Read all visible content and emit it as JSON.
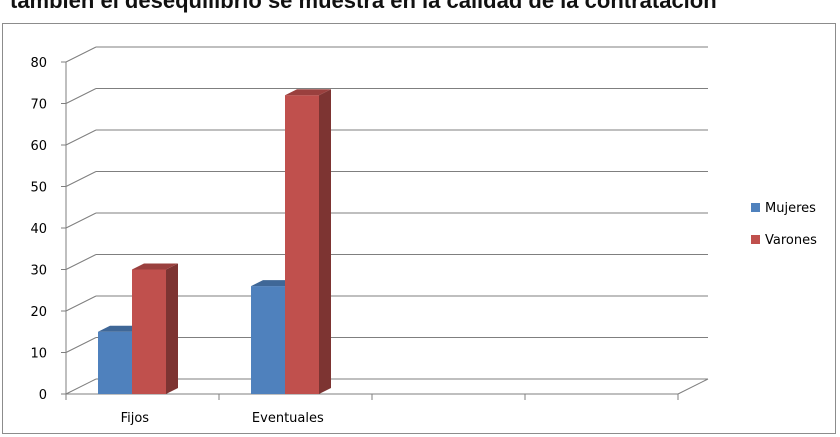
{
  "header": {
    "partial_text": "también el desequilibrio se muestra en la calidad de la contratación"
  },
  "colors": {
    "mujeres": "#4f81bd",
    "varones": "#c0504d",
    "grid": "#7f7f7f"
  },
  "chart_data": {
    "type": "bar",
    "style": "3d-clustered-column",
    "categories": [
      "Fijos",
      "Eventuales",
      "",
      ""
    ],
    "series": [
      {
        "name": "Mujeres",
        "values": [
          15,
          26,
          null,
          null
        ]
      },
      {
        "name": "Varones",
        "values": [
          30,
          72,
          null,
          null
        ]
      }
    ],
    "ylim": [
      0,
      80
    ],
    "yticks": [
      0,
      10,
      20,
      30,
      40,
      50,
      60,
      70,
      80
    ],
    "grid": true,
    "legend_position": "right"
  }
}
